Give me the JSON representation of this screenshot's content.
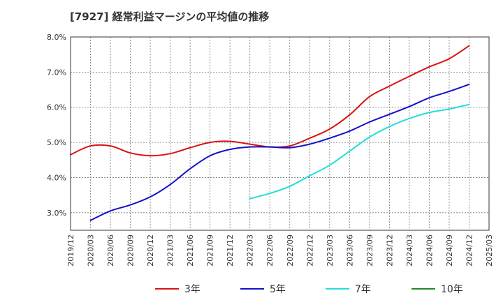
{
  "chart_data": {
    "type": "line",
    "title": "[7927]  経常利益マージンの平均値の推移",
    "xlabel": "",
    "ylabel": "",
    "ylim": [
      2.5,
      8.0
    ],
    "yticks": [
      "3.0%",
      "4.0%",
      "5.0%",
      "6.0%",
      "7.0%",
      "8.0%"
    ],
    "xticks": [
      "2019/12",
      "2020/03",
      "2020/06",
      "2020/09",
      "2020/12",
      "2021/03",
      "2021/06",
      "2021/09",
      "2021/12",
      "2022/03",
      "2022/06",
      "2022/09",
      "2022/12",
      "2023/03",
      "2023/06",
      "2023/09",
      "2023/12",
      "2024/03",
      "2024/06",
      "2024/09",
      "2024/12",
      "2025/03"
    ],
    "grid": true,
    "legend_position": "bottom",
    "series": [
      {
        "name": "3年",
        "color": "#dd1111",
        "x": [
          "2019/12",
          "2020/03",
          "2020/06",
          "2020/09",
          "2020/12",
          "2021/03",
          "2021/06",
          "2021/09",
          "2021/12",
          "2022/03",
          "2022/06",
          "2022/09",
          "2022/12",
          "2023/03",
          "2023/06",
          "2023/09",
          "2023/12",
          "2024/03",
          "2024/06",
          "2024/09",
          "2024/12"
        ],
        "values": [
          4.65,
          4.9,
          4.9,
          4.7,
          4.62,
          4.68,
          4.85,
          5.0,
          5.03,
          4.95,
          4.87,
          4.9,
          5.12,
          5.38,
          5.78,
          6.3,
          6.6,
          6.88,
          7.15,
          7.38,
          7.75
        ]
      },
      {
        "name": "5年",
        "color": "#1111cc",
        "x": [
          "2020/03",
          "2020/06",
          "2020/09",
          "2020/12",
          "2021/03",
          "2021/06",
          "2021/09",
          "2021/12",
          "2022/03",
          "2022/06",
          "2022/09",
          "2022/12",
          "2023/03",
          "2023/06",
          "2023/09",
          "2023/12",
          "2024/03",
          "2024/06",
          "2024/09",
          "2024/12"
        ],
        "values": [
          2.78,
          3.05,
          3.22,
          3.45,
          3.8,
          4.25,
          4.62,
          4.8,
          4.87,
          4.87,
          4.85,
          4.95,
          5.12,
          5.32,
          5.58,
          5.8,
          6.02,
          6.27,
          6.45,
          6.65
        ]
      },
      {
        "name": "7年",
        "color": "#22dddd",
        "x": [
          "2022/03",
          "2022/06",
          "2022/09",
          "2022/12",
          "2023/03",
          "2023/06",
          "2023/09",
          "2023/12",
          "2024/03",
          "2024/06",
          "2024/09",
          "2024/12"
        ],
        "values": [
          3.4,
          3.55,
          3.75,
          4.05,
          4.35,
          4.75,
          5.15,
          5.45,
          5.68,
          5.85,
          5.95,
          6.08
        ]
      },
      {
        "name": "10年",
        "color": "#228822",
        "x": [],
        "values": []
      }
    ]
  }
}
